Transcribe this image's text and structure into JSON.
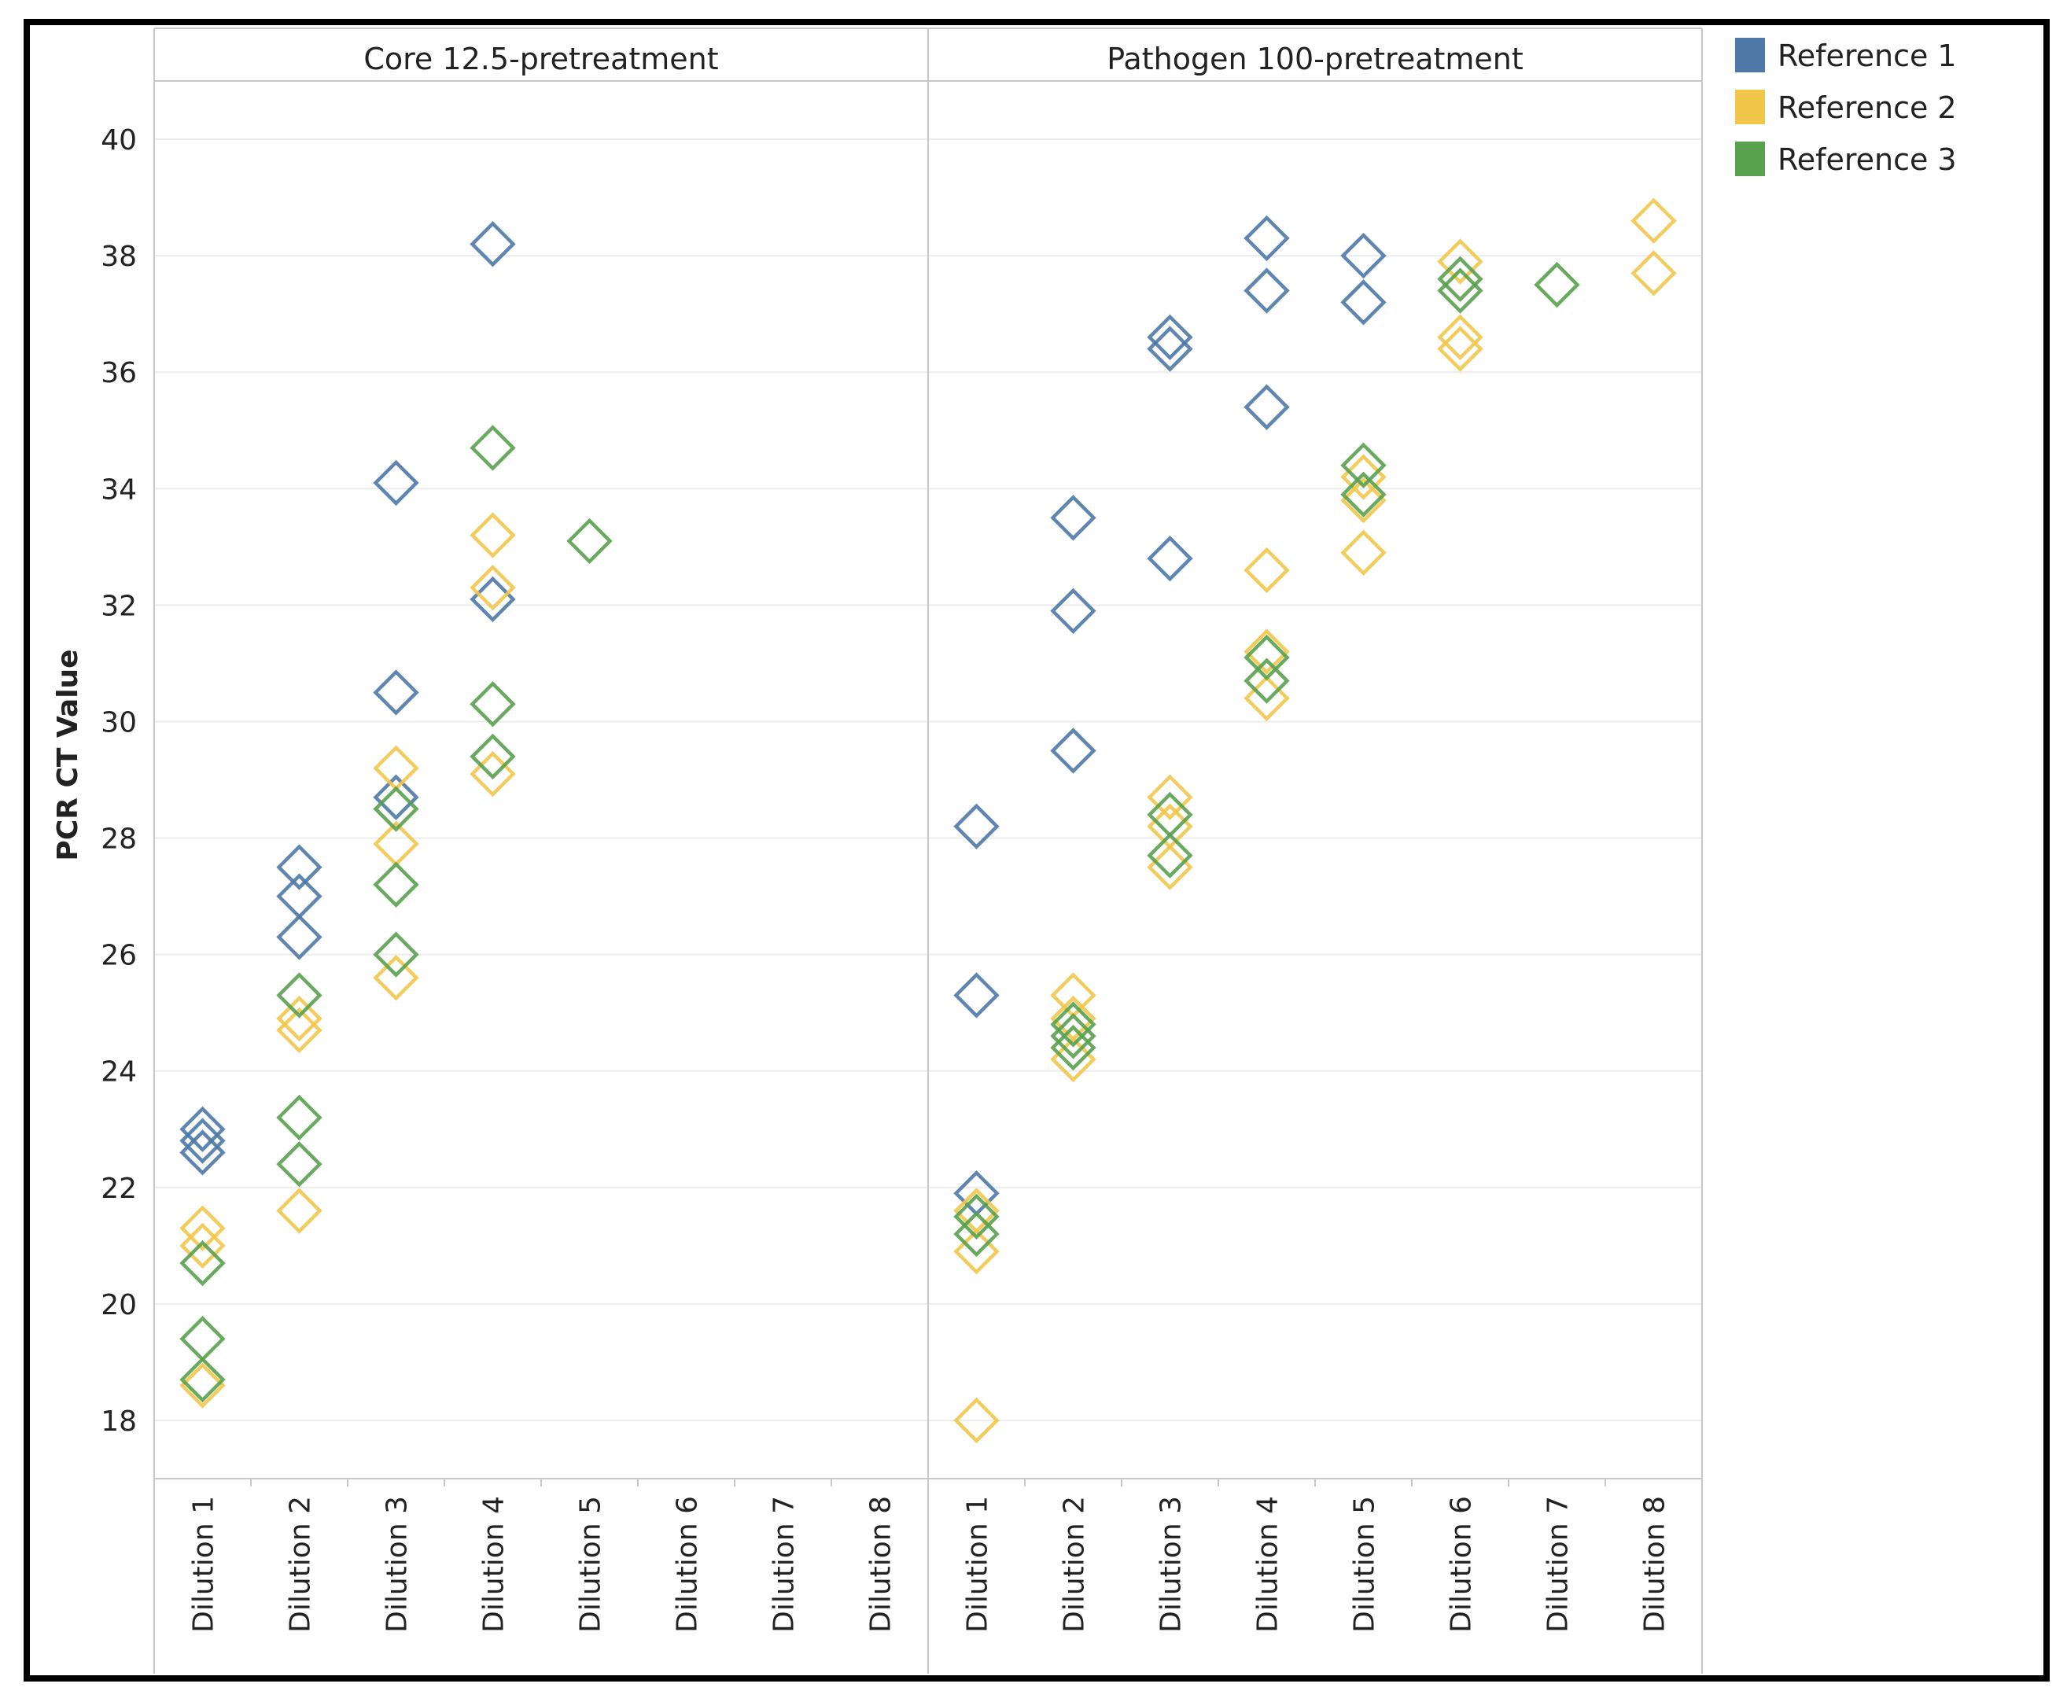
{
  "chart_data": {
    "type": "scatter",
    "ylabel": "PCR CT Value",
    "ylim": [
      17,
      41
    ],
    "yticks": [
      18,
      20,
      22,
      24,
      26,
      28,
      30,
      32,
      34,
      36,
      38,
      40
    ],
    "marker": "hollow-diamond",
    "legend": {
      "placement": "top-right",
      "entries": [
        {
          "name": "Reference 1",
          "color": "#4e79a7"
        },
        {
          "name": "Reference 2",
          "color": "#f1c74a"
        },
        {
          "name": "Reference 3",
          "color": "#59a14f"
        }
      ]
    },
    "panels": [
      {
        "title": "Core 12.5-pretreatment",
        "categories": [
          "Dilution 1",
          "Dilution 2",
          "Dilution 3",
          "Dilution 4",
          "Dilution 5",
          "Dilution 6",
          "Dilution 7",
          "Dilution 8"
        ],
        "series": [
          {
            "name": "Reference 1",
            "color": "#4e79a7",
            "points": [
              {
                "x": "Dilution 1",
                "y": 23.0
              },
              {
                "x": "Dilution 1",
                "y": 22.8
              },
              {
                "x": "Dilution 1",
                "y": 22.6
              },
              {
                "x": "Dilution 2",
                "y": 27.5
              },
              {
                "x": "Dilution 2",
                "y": 27.0
              },
              {
                "x": "Dilution 2",
                "y": 26.3
              },
              {
                "x": "Dilution 3",
                "y": 34.1
              },
              {
                "x": "Dilution 3",
                "y": 30.5
              },
              {
                "x": "Dilution 3",
                "y": 28.7
              },
              {
                "x": "Dilution 4",
                "y": 38.2
              },
              {
                "x": "Dilution 4",
                "y": 32.1
              }
            ]
          },
          {
            "name": "Reference 2",
            "color": "#f1c74a",
            "points": [
              {
                "x": "Dilution 1",
                "y": 21.3
              },
              {
                "x": "Dilution 1",
                "y": 21.0
              },
              {
                "x": "Dilution 1",
                "y": 18.6
              },
              {
                "x": "Dilution 2",
                "y": 24.9
              },
              {
                "x": "Dilution 2",
                "y": 24.7
              },
              {
                "x": "Dilution 2",
                "y": 21.6
              },
              {
                "x": "Dilution 3",
                "y": 29.2
              },
              {
                "x": "Dilution 3",
                "y": 27.9
              },
              {
                "x": "Dilution 3",
                "y": 25.6
              },
              {
                "x": "Dilution 4",
                "y": 33.2
              },
              {
                "x": "Dilution 4",
                "y": 32.3
              },
              {
                "x": "Dilution 4",
                "y": 29.1
              }
            ]
          },
          {
            "name": "Reference 3",
            "color": "#59a14f",
            "points": [
              {
                "x": "Dilution 1",
                "y": 20.7
              },
              {
                "x": "Dilution 1",
                "y": 19.4
              },
              {
                "x": "Dilution 1",
                "y": 18.7
              },
              {
                "x": "Dilution 2",
                "y": 25.3
              },
              {
                "x": "Dilution 2",
                "y": 23.2
              },
              {
                "x": "Dilution 2",
                "y": 22.4
              },
              {
                "x": "Dilution 3",
                "y": 28.5
              },
              {
                "x": "Dilution 3",
                "y": 27.2
              },
              {
                "x": "Dilution 3",
                "y": 26.0
              },
              {
                "x": "Dilution 4",
                "y": 34.7
              },
              {
                "x": "Dilution 4",
                "y": 30.3
              },
              {
                "x": "Dilution 4",
                "y": 29.4
              },
              {
                "x": "Dilution 5",
                "y": 33.1
              }
            ]
          }
        ]
      },
      {
        "title": "Pathogen 100-pretreatment",
        "categories": [
          "Dilution 1",
          "Dilution 2",
          "Dilution 3",
          "Dilution 4",
          "Dilution 5",
          "Dilution 6",
          "Dilution 7",
          "Dilution 8"
        ],
        "series": [
          {
            "name": "Reference 1",
            "color": "#4e79a7",
            "points": [
              {
                "x": "Dilution 1",
                "y": 28.2
              },
              {
                "x": "Dilution 1",
                "y": 25.3
              },
              {
                "x": "Dilution 1",
                "y": 21.9
              },
              {
                "x": "Dilution 2",
                "y": 33.5
              },
              {
                "x": "Dilution 2",
                "y": 31.9
              },
              {
                "x": "Dilution 2",
                "y": 29.5
              },
              {
                "x": "Dilution 3",
                "y": 36.6
              },
              {
                "x": "Dilution 3",
                "y": 36.4
              },
              {
                "x": "Dilution 3",
                "y": 32.8
              },
              {
                "x": "Dilution 4",
                "y": 38.3
              },
              {
                "x": "Dilution 4",
                "y": 37.4
              },
              {
                "x": "Dilution 4",
                "y": 35.4
              },
              {
                "x": "Dilution 5",
                "y": 38.0
              },
              {
                "x": "Dilution 5",
                "y": 37.2
              }
            ]
          },
          {
            "name": "Reference 2",
            "color": "#f1c74a",
            "points": [
              {
                "x": "Dilution 1",
                "y": 21.6
              },
              {
                "x": "Dilution 1",
                "y": 20.9
              },
              {
                "x": "Dilution 1",
                "y": 18.0
              },
              {
                "x": "Dilution 2",
                "y": 25.3
              },
              {
                "x": "Dilution 2",
                "y": 24.9
              },
              {
                "x": "Dilution 2",
                "y": 24.2
              },
              {
                "x": "Dilution 3",
                "y": 28.7
              },
              {
                "x": "Dilution 3",
                "y": 28.2
              },
              {
                "x": "Dilution 3",
                "y": 27.5
              },
              {
                "x": "Dilution 4",
                "y": 32.6
              },
              {
                "x": "Dilution 4",
                "y": 31.2
              },
              {
                "x": "Dilution 4",
                "y": 30.4
              },
              {
                "x": "Dilution 5",
                "y": 34.2
              },
              {
                "x": "Dilution 5",
                "y": 33.8
              },
              {
                "x": "Dilution 5",
                "y": 32.9
              },
              {
                "x": "Dilution 6",
                "y": 37.9
              },
              {
                "x": "Dilution 6",
                "y": 36.6
              },
              {
                "x": "Dilution 6",
                "y": 36.4
              },
              {
                "x": "Dilution 8",
                "y": 38.6
              },
              {
                "x": "Dilution 8",
                "y": 37.7
              }
            ]
          },
          {
            "name": "Reference 3",
            "color": "#59a14f",
            "points": [
              {
                "x": "Dilution 1",
                "y": 21.5
              },
              {
                "x": "Dilution 1",
                "y": 21.2
              },
              {
                "x": "Dilution 2",
                "y": 24.8
              },
              {
                "x": "Dilution 2",
                "y": 24.6
              },
              {
                "x": "Dilution 2",
                "y": 24.4
              },
              {
                "x": "Dilution 3",
                "y": 28.4
              },
              {
                "x": "Dilution 3",
                "y": 27.7
              },
              {
                "x": "Dilution 4",
                "y": 31.1
              },
              {
                "x": "Dilution 4",
                "y": 30.7
              },
              {
                "x": "Dilution 5",
                "y": 34.4
              },
              {
                "x": "Dilution 5",
                "y": 33.9
              },
              {
                "x": "Dilution 6",
                "y": 37.6
              },
              {
                "x": "Dilution 6",
                "y": 37.4
              },
              {
                "x": "Dilution 7",
                "y": 37.5
              }
            ]
          }
        ]
      }
    ]
  }
}
